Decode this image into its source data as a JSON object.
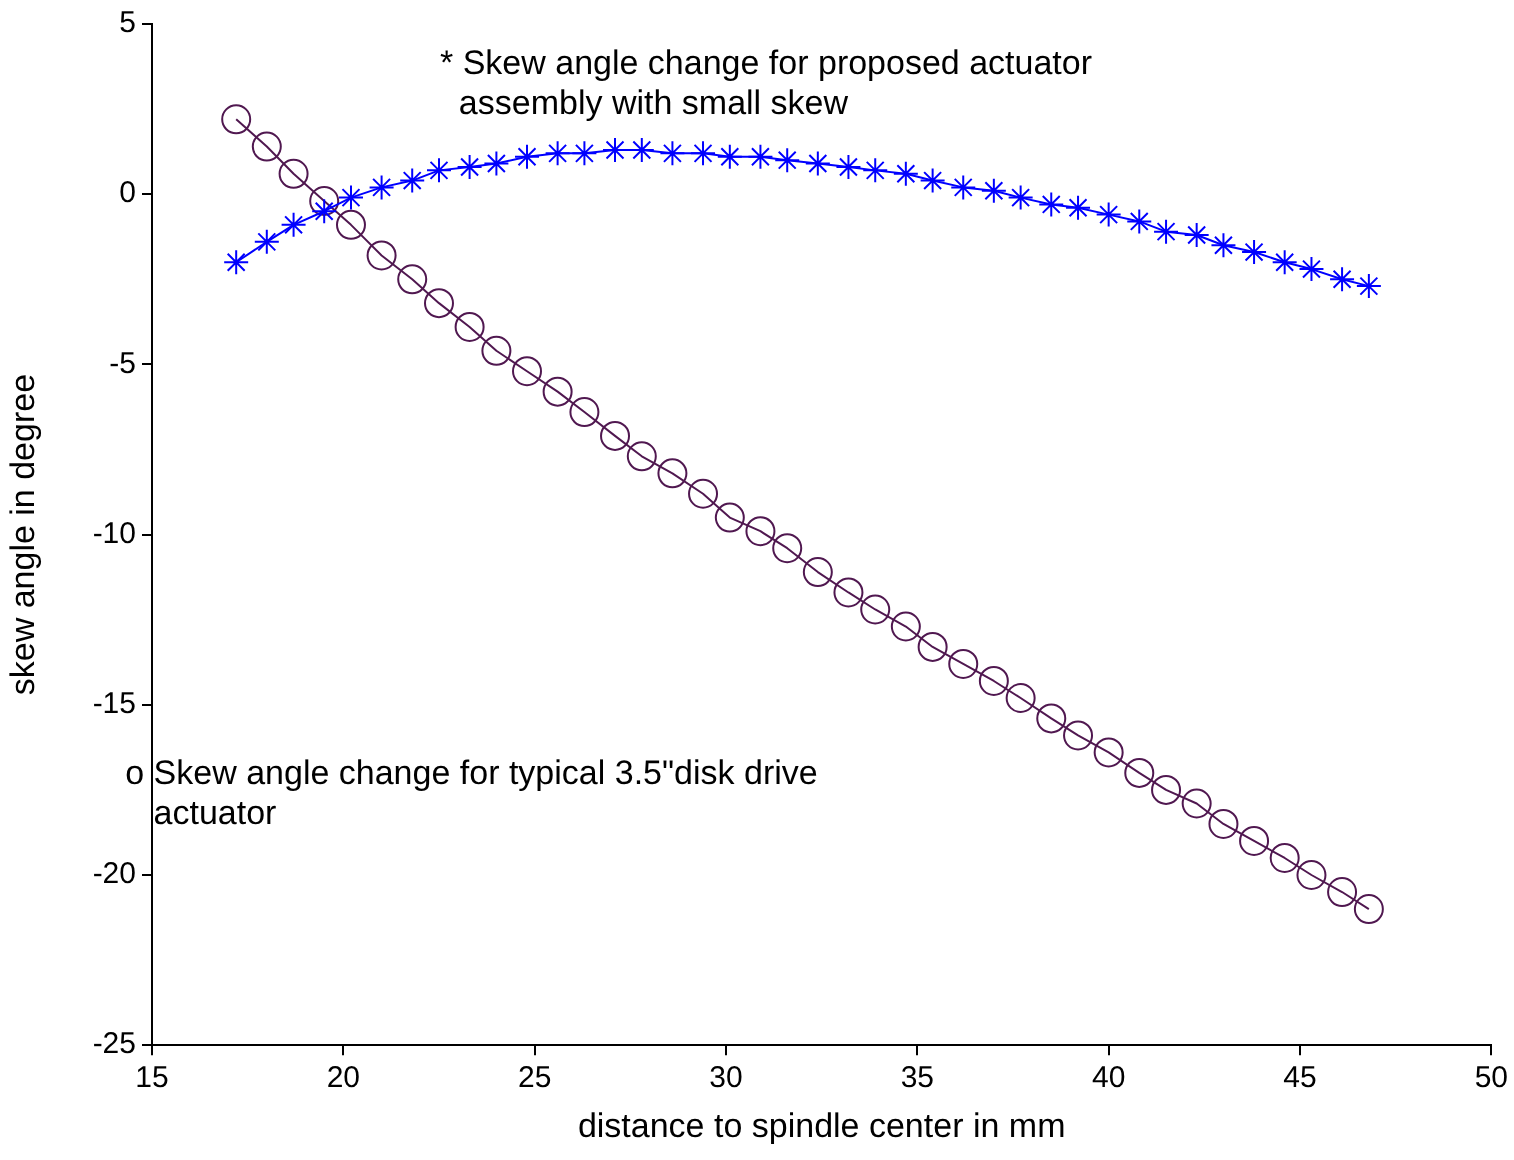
{
  "chart_data": {
    "type": "line",
    "xlabel": "distance to spindle center in mm",
    "ylabel": "skew angle in degree",
    "x": [
      17.2,
      18.0,
      18.7,
      19.5,
      20.2,
      21.0,
      21.8,
      22.5,
      23.3,
      24.0,
      24.8,
      25.6,
      26.3,
      27.1,
      27.8,
      28.6,
      29.4,
      30.1,
      30.9,
      31.6,
      32.4,
      33.2,
      33.9,
      34.7,
      35.4,
      36.2,
      37.0,
      37.7,
      38.5,
      39.2,
      40.0,
      40.8,
      41.5,
      42.3,
      43.0,
      43.8,
      44.6,
      45.3,
      46.1,
      46.8
    ],
    "series": [
      {
        "color": "#0000ff",
        "marker": "cross",
        "values": [
          -2.0,
          -1.4,
          -0.9,
          -0.5,
          -0.1,
          0.2,
          0.4,
          0.7,
          0.8,
          0.9,
          1.1,
          1.2,
          1.2,
          1.3,
          1.3,
          1.2,
          1.2,
          1.1,
          1.1,
          1.0,
          0.9,
          0.8,
          0.7,
          0.6,
          0.4,
          0.2,
          0.1,
          -0.1,
          -0.3,
          -0.4,
          -0.6,
          -0.8,
          -1.1,
          -1.2,
          -1.5,
          -1.7,
          -2.0,
          -2.2,
          -2.5,
          -2.7
        ]
      },
      {
        "color": "#501850",
        "marker": "circle",
        "values": [
          2.2,
          1.4,
          0.6,
          -0.2,
          -0.9,
          -1.8,
          -2.5,
          -3.2,
          -3.9,
          -4.6,
          -5.2,
          -5.8,
          -6.4,
          -7.1,
          -7.7,
          -8.2,
          -8.8,
          -9.5,
          -9.9,
          -10.4,
          -11.1,
          -11.7,
          -12.2,
          -12.7,
          -13.3,
          -13.8,
          -14.3,
          -14.8,
          -15.4,
          -15.9,
          -16.4,
          -17.0,
          -17.5,
          -17.9,
          -18.5,
          -19.0,
          -19.5,
          -20.0,
          -20.5,
          -21.0
        ]
      }
    ],
    "xlim": [
      15,
      50
    ],
    "xticks": [
      15,
      20,
      25,
      30,
      35,
      40,
      45,
      50
    ],
    "ylim": [
      -25,
      5
    ],
    "yticks": [
      -25,
      -20,
      -15,
      -10,
      -5,
      0,
      5
    ],
    "grid": false,
    "legend": false,
    "line_style": "solid",
    "annotations": [
      "* Skew angle change for proposed actuator\n  assembly with small skew",
      "o Skew angle change for typical 3.5\"disk drive\n   actuator"
    ]
  }
}
